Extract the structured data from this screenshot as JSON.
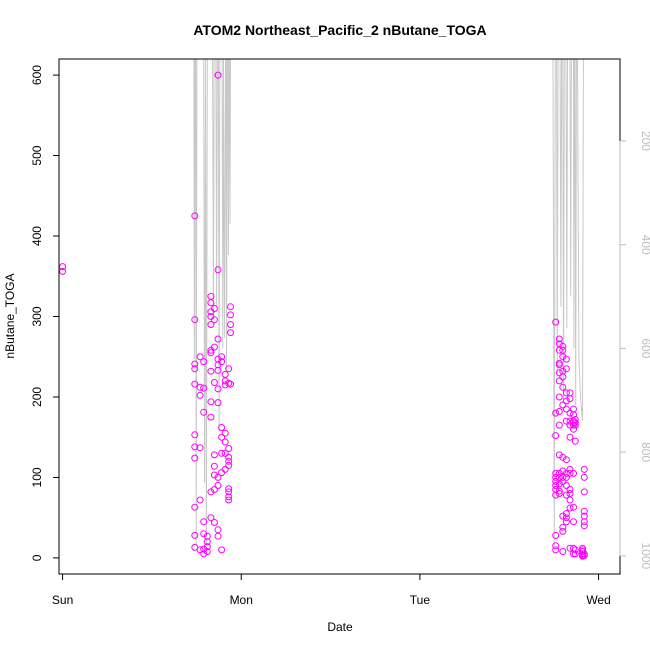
{
  "chart_data": {
    "type": "scatter",
    "title": "ATOM2 Northeast_Pacific_2 nButane_TOGA",
    "xlabel": "Date",
    "ylabel": "nButane_TOGA",
    "x_ticks": [
      "Sun",
      "Mon",
      "Tue",
      "Wed"
    ],
    "xlim": [
      -0.02,
      3.12
    ],
    "ylim": [
      -20,
      620
    ],
    "y_ticks": [
      0,
      100,
      200,
      300,
      400,
      500,
      600
    ],
    "right_axis": {
      "ticks": [
        200,
        400,
        600,
        800,
        1000
      ],
      "range_top_to_bottom": [
        42,
        1035
      ],
      "color": "#bdbdbd"
    },
    "point_color": "#ff00ff",
    "line_color": "#c8c8c8",
    "series": [
      {
        "values": [
          [
            0.0,
            362
          ],
          [
            0.0,
            356
          ],
          [
            0.74,
            425
          ],
          [
            0.74,
            296
          ],
          [
            0.74,
            241
          ],
          [
            0.74,
            235
          ],
          [
            0.74,
            216
          ],
          [
            0.74,
            153
          ],
          [
            0.74,
            138
          ],
          [
            0.74,
            124
          ],
          [
            0.74,
            63
          ],
          [
            0.74,
            28
          ],
          [
            0.74,
            13
          ],
          [
            0.77,
            250
          ],
          [
            0.77,
            212
          ],
          [
            0.77,
            202
          ],
          [
            0.77,
            137
          ],
          [
            0.77,
            72
          ],
          [
            0.77,
            10
          ],
          [
            0.79,
            244
          ],
          [
            0.79,
            211
          ],
          [
            0.79,
            181
          ],
          [
            0.79,
            45
          ],
          [
            0.79,
            30
          ],
          [
            0.79,
            11
          ],
          [
            0.79,
            5
          ],
          [
            0.81,
            27
          ],
          [
            0.81,
            20
          ],
          [
            0.81,
            14
          ],
          [
            0.81,
            8
          ],
          [
            0.83,
            325
          ],
          [
            0.83,
            317
          ],
          [
            0.83,
            306
          ],
          [
            0.83,
            300
          ],
          [
            0.83,
            290
          ],
          [
            0.83,
            258
          ],
          [
            0.83,
            255
          ],
          [
            0.83,
            232
          ],
          [
            0.83,
            194
          ],
          [
            0.83,
            175
          ],
          [
            0.83,
            82
          ],
          [
            0.83,
            50
          ],
          [
            0.85,
            310
          ],
          [
            0.85,
            296
          ],
          [
            0.85,
            262
          ],
          [
            0.85,
            218
          ],
          [
            0.85,
            128
          ],
          [
            0.85,
            114
          ],
          [
            0.85,
            103
          ],
          [
            0.85,
            85
          ],
          [
            0.85,
            44
          ],
          [
            0.87,
            600
          ],
          [
            0.87,
            358
          ],
          [
            0.87,
            272
          ],
          [
            0.87,
            247
          ],
          [
            0.87,
            240
          ],
          [
            0.87,
            233
          ],
          [
            0.87,
            210
          ],
          [
            0.87,
            193
          ],
          [
            0.87,
            100
          ],
          [
            0.87,
            90
          ],
          [
            0.87,
            35
          ],
          [
            0.87,
            27
          ],
          [
            0.89,
            250
          ],
          [
            0.89,
            244
          ],
          [
            0.89,
            162
          ],
          [
            0.89,
            150
          ],
          [
            0.89,
            130
          ],
          [
            0.89,
            106
          ],
          [
            0.89,
            10
          ],
          [
            0.91,
            228
          ],
          [
            0.91,
            220
          ],
          [
            0.91,
            215
          ],
          [
            0.91,
            155
          ],
          [
            0.91,
            144
          ],
          [
            0.91,
            130
          ],
          [
            0.91,
            110
          ],
          [
            0.93,
            235
          ],
          [
            0.93,
            217
          ],
          [
            0.93,
            136
          ],
          [
            0.93,
            125
          ],
          [
            0.93,
            120
          ],
          [
            0.93,
            115
          ],
          [
            0.93,
            86
          ],
          [
            0.93,
            82
          ],
          [
            0.93,
            76
          ],
          [
            0.93,
            72
          ],
          [
            0.94,
            312
          ],
          [
            0.94,
            302
          ],
          [
            0.94,
            290
          ],
          [
            0.94,
            280
          ],
          [
            0.94,
            216
          ],
          [
            2.76,
            293
          ],
          [
            2.76,
            180
          ],
          [
            2.76,
            152
          ],
          [
            2.76,
            105
          ],
          [
            2.76,
            100
          ],
          [
            2.76,
            95
          ],
          [
            2.76,
            90
          ],
          [
            2.76,
            85
          ],
          [
            2.76,
            78
          ],
          [
            2.76,
            28
          ],
          [
            2.76,
            15
          ],
          [
            2.76,
            10
          ],
          [
            2.78,
            272
          ],
          [
            2.78,
            266
          ],
          [
            2.78,
            258
          ],
          [
            2.78,
            242
          ],
          [
            2.78,
            240
          ],
          [
            2.78,
            230
          ],
          [
            2.78,
            220
          ],
          [
            2.78,
            200
          ],
          [
            2.78,
            182
          ],
          [
            2.78,
            165
          ],
          [
            2.78,
            128
          ],
          [
            2.78,
            105
          ],
          [
            2.78,
            100
          ],
          [
            2.78,
            92
          ],
          [
            2.78,
            83
          ],
          [
            2.78,
            80
          ],
          [
            2.8,
            263
          ],
          [
            2.8,
            258
          ],
          [
            2.8,
            250
          ],
          [
            2.8,
            232
          ],
          [
            2.8,
            225
          ],
          [
            2.8,
            212
          ],
          [
            2.8,
            190
          ],
          [
            2.8,
            125
          ],
          [
            2.8,
            108
          ],
          [
            2.8,
            100
          ],
          [
            2.8,
            95
          ],
          [
            2.8,
            52
          ],
          [
            2.8,
            38
          ],
          [
            2.8,
            33
          ],
          [
            2.8,
            8
          ],
          [
            2.82,
            247
          ],
          [
            2.82,
            235
          ],
          [
            2.82,
            205
          ],
          [
            2.82,
            195
          ],
          [
            2.82,
            185
          ],
          [
            2.82,
            170
          ],
          [
            2.82,
            122
          ],
          [
            2.82,
            105
          ],
          [
            2.82,
            100
          ],
          [
            2.82,
            90
          ],
          [
            2.82,
            78
          ],
          [
            2.82,
            55
          ],
          [
            2.82,
            50
          ],
          [
            2.82,
            45
          ],
          [
            2.84,
            205
          ],
          [
            2.84,
            198
          ],
          [
            2.84,
            180
          ],
          [
            2.84,
            170
          ],
          [
            2.84,
            165
          ],
          [
            2.84,
            150
          ],
          [
            2.84,
            110
          ],
          [
            2.84,
            105
          ],
          [
            2.84,
            85
          ],
          [
            2.84,
            80
          ],
          [
            2.84,
            72
          ],
          [
            2.84,
            62
          ],
          [
            2.84,
            12
          ],
          [
            2.86,
            185
          ],
          [
            2.86,
            178
          ],
          [
            2.86,
            170
          ],
          [
            2.86,
            168
          ],
          [
            2.86,
            165
          ],
          [
            2.86,
            160
          ],
          [
            2.86,
            105
          ],
          [
            2.86,
            63
          ],
          [
            2.86,
            45
          ],
          [
            2.86,
            12
          ],
          [
            2.86,
            5
          ],
          [
            2.87,
            172
          ],
          [
            2.87,
            168
          ],
          [
            2.87,
            165
          ],
          [
            2.87,
            145
          ],
          [
            2.87,
            10
          ],
          [
            2.87,
            5
          ],
          [
            2.91,
            12
          ],
          [
            2.91,
            10
          ],
          [
            2.91,
            8
          ],
          [
            2.91,
            5
          ],
          [
            2.91,
            3
          ],
          [
            2.91,
            2
          ],
          [
            2.92,
            110
          ],
          [
            2.92,
            100
          ],
          [
            2.92,
            82
          ],
          [
            2.92,
            58
          ],
          [
            2.92,
            52
          ],
          [
            2.92,
            45
          ],
          [
            2.92,
            40
          ],
          [
            2.92,
            5
          ],
          [
            2.92,
            3
          ]
        ]
      }
    ],
    "right_series": {
      "values": [
        [
          0.735,
          42
        ],
        [
          0.738,
          620
        ],
        [
          0.741,
          42
        ],
        [
          0.745,
          42
        ],
        [
          0.748,
          980
        ],
        [
          0.752,
          42
        ],
        [
          0.79,
          42
        ],
        [
          0.795,
          860
        ],
        [
          0.8,
          42
        ],
        [
          0.8,
          42
        ],
        [
          0.805,
          980
        ],
        [
          0.81,
          42
        ],
        [
          0.84,
          42
        ],
        [
          0.844,
          540
        ],
        [
          0.848,
          42
        ],
        [
          0.858,
          42
        ],
        [
          0.862,
          520
        ],
        [
          0.866,
          42
        ],
        [
          0.872,
          42
        ],
        [
          0.876,
          760
        ],
        [
          0.88,
          42
        ],
        [
          0.893,
          42
        ],
        [
          0.897,
          600
        ],
        [
          0.901,
          42
        ],
        [
          0.903,
          290
        ],
        [
          0.907,
          580
        ],
        [
          0.912,
          42
        ],
        [
          0.915,
          42
        ],
        [
          0.918,
          640
        ],
        [
          0.921,
          42
        ],
        [
          0.925,
          42
        ],
        [
          0.928,
          420
        ],
        [
          0.931,
          42
        ],
        [
          0.934,
          42
        ],
        [
          0.937,
          360
        ],
        [
          0.94,
          42
        ],
        [
          2.73,
          42
        ],
        [
          2.745,
          42
        ],
        [
          2.752,
          980
        ],
        [
          2.758,
          42
        ],
        [
          2.765,
          42
        ],
        [
          2.769,
          650
        ],
        [
          2.773,
          42
        ],
        [
          2.785,
          42
        ],
        [
          2.789,
          520
        ],
        [
          2.793,
          42
        ],
        [
          2.8,
          42
        ],
        [
          2.804,
          700
        ],
        [
          2.808,
          42
        ],
        [
          2.818,
          42
        ],
        [
          2.822,
          560
        ],
        [
          2.826,
          42
        ],
        [
          2.84,
          42
        ],
        [
          2.844,
          500
        ],
        [
          2.848,
          42
        ],
        [
          2.86,
          42
        ],
        [
          2.862,
          600
        ],
        [
          2.865,
          42
        ],
        [
          2.868,
          42
        ],
        [
          2.872,
          710
        ],
        [
          2.876,
          42
        ],
        [
          2.882,
          42
        ],
        [
          2.89,
          620
        ],
        [
          2.9,
          700
        ],
        [
          2.91,
          740
        ],
        [
          2.915,
          42
        ]
      ]
    }
  }
}
